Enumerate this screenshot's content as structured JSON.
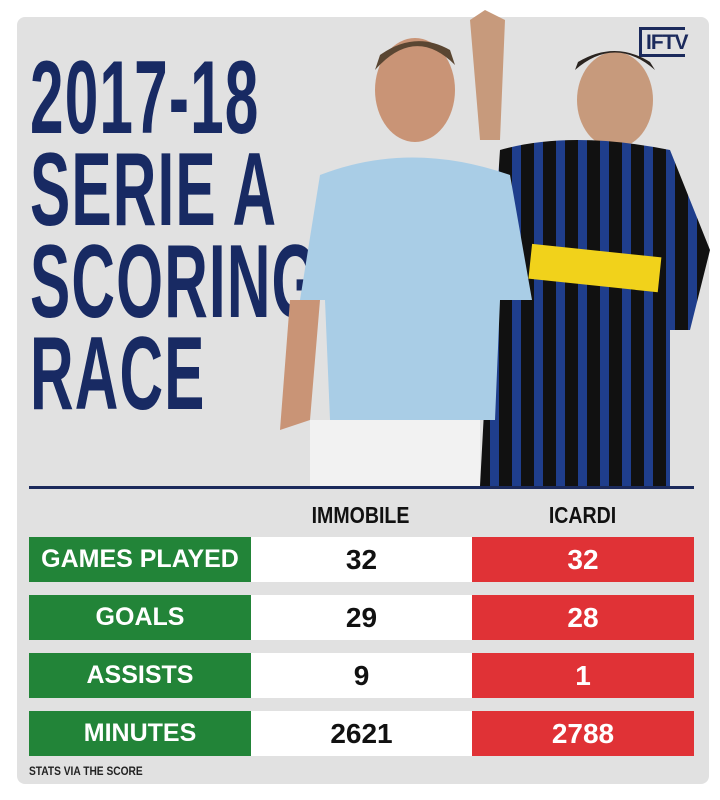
{
  "brand": {
    "logo": "IFTV"
  },
  "title": [
    "2017-18",
    "SERIE A",
    "SCORING",
    "RACE"
  ],
  "players": {
    "left": "IMMOBILE",
    "right": "ICARDI"
  },
  "stats": [
    {
      "label": "GAMES PLAYED",
      "immobile": "32",
      "icardi": "32"
    },
    {
      "label": "GOALS",
      "immobile": "29",
      "icardi": "28"
    },
    {
      "label": "ASSISTS",
      "immobile": "9",
      "icardi": "1"
    },
    {
      "label": "MINUTES",
      "immobile": "2621",
      "icardi": "2788"
    }
  ],
  "footer": "STATS VIA THE SCORE",
  "colors": {
    "navy": "#182a63",
    "green": "#228438",
    "red": "#e03236",
    "background": "#e1e1e1"
  }
}
